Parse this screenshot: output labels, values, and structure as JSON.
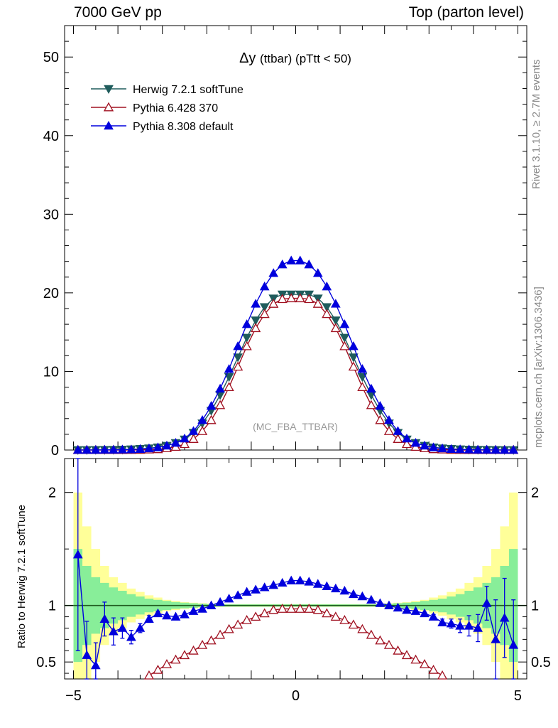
{
  "header": {
    "left": "7000 GeV pp",
    "right": "Top (parton level)"
  },
  "side": {
    "rivet": "Rivet 3.1.10, ≥ 2.7M events",
    "mcplots": "mcplots.cern.ch [arXiv:1306.3436]"
  },
  "chart_data": [
    {
      "type": "line",
      "panel": "main",
      "title_main": "Δy",
      "title_sub": "(ttbar) (pTtt < 50)",
      "watermark": "(MC_FBA_TTBAR)",
      "xlim": [
        -5,
        5
      ],
      "ylim": [
        0,
        54
      ],
      "yticks": [
        0,
        10,
        20,
        30,
        40,
        50
      ],
      "legend": "top-left",
      "x": [
        -4.9,
        -4.7,
        -4.5,
        -4.3,
        -4.1,
        -3.9,
        -3.7,
        -3.5,
        -3.3,
        -3.1,
        -2.9,
        -2.7,
        -2.5,
        -2.3,
        -2.1,
        -1.9,
        -1.7,
        -1.5,
        -1.3,
        -1.1,
        -0.9,
        -0.7,
        -0.5,
        -0.3,
        -0.1,
        0.1,
        0.3,
        0.5,
        0.7,
        0.9,
        1.1,
        1.3,
        1.5,
        1.7,
        1.9,
        2.1,
        2.3,
        2.5,
        2.7,
        2.9,
        3.1,
        3.3,
        3.5,
        3.7,
        3.9,
        4.1,
        4.3,
        4.5,
        4.7,
        4.9
      ],
      "series": [
        {
          "name": "Herwig 7.2.1 softTune",
          "color": "#1f5c5c",
          "marker": "triangle-down-filled",
          "values": [
            0.01,
            0.01,
            0.02,
            0.03,
            0.04,
            0.06,
            0.1,
            0.15,
            0.22,
            0.35,
            0.55,
            0.9,
            1.35,
            2.2,
            3.4,
            5.0,
            7.0,
            9.3,
            11.8,
            14.3,
            16.5,
            18.2,
            19.3,
            19.8,
            19.8,
            19.8,
            19.8,
            19.3,
            18.2,
            16.5,
            14.3,
            11.8,
            9.3,
            7.0,
            5.0,
            3.4,
            2.2,
            1.35,
            0.9,
            0.55,
            0.35,
            0.22,
            0.15,
            0.1,
            0.06,
            0.04,
            0.03,
            0.02,
            0.01,
            0.01
          ]
        },
        {
          "name": "Pythia 6.428 370",
          "color": "#a01020",
          "marker": "triangle-up-open",
          "values": [
            0.0,
            0.0,
            0.0,
            0.0,
            0.0,
            0.0,
            0.01,
            0.02,
            0.06,
            0.1,
            0.22,
            0.4,
            0.75,
            1.4,
            2.4,
            3.8,
            5.7,
            8.0,
            10.6,
            13.2,
            15.5,
            17.3,
            18.6,
            19.2,
            19.3,
            19.3,
            19.2,
            18.6,
            17.3,
            15.5,
            13.2,
            10.6,
            8.0,
            5.7,
            3.8,
            2.4,
            1.4,
            0.75,
            0.4,
            0.22,
            0.1,
            0.06,
            0.02,
            0.01,
            0.0,
            0.0,
            0.0,
            0.0,
            0.0,
            0.0
          ]
        },
        {
          "name": "Pythia 8.308 default",
          "color": "#0000dd",
          "marker": "triangle-up-filled",
          "values": [
            0.01,
            0.01,
            0.01,
            0.03,
            0.03,
            0.05,
            0.07,
            0.12,
            0.2,
            0.32,
            0.55,
            0.9,
            1.45,
            2.4,
            3.8,
            5.6,
            7.8,
            10.3,
            13.2,
            16.0,
            18.6,
            20.8,
            22.5,
            23.6,
            24.1,
            24.1,
            23.6,
            22.5,
            20.8,
            18.6,
            16.0,
            13.2,
            10.3,
            7.8,
            5.6,
            3.8,
            2.4,
            1.45,
            0.9,
            0.55,
            0.32,
            0.2,
            0.12,
            0.08,
            0.05,
            0.03,
            0.03,
            0.02,
            0.01,
            0.01
          ]
        }
      ]
    },
    {
      "type": "line",
      "panel": "ratio",
      "ylabel": "Ratio to Herwig 7.2.1 softTune",
      "xlim": [
        -5,
        5
      ],
      "ylim": [
        0.35,
        2.3
      ],
      "yticks": [
        0.5,
        1,
        2
      ],
      "ytick_labels": [
        "0.5",
        "1",
        "2"
      ],
      "xticks": [
        -5,
        0,
        5
      ],
      "xtick_labels": [
        "−5",
        "0",
        "5"
      ],
      "x": [
        -4.9,
        -4.7,
        -4.5,
        -4.3,
        -4.1,
        -3.9,
        -3.7,
        -3.5,
        -3.3,
        -3.1,
        -2.9,
        -2.7,
        -2.5,
        -2.3,
        -2.1,
        -1.9,
        -1.7,
        -1.5,
        -1.3,
        -1.1,
        -0.9,
        -0.7,
        -0.5,
        -0.3,
        -0.1,
        0.1,
        0.3,
        0.5,
        0.7,
        0.9,
        1.1,
        1.3,
        1.5,
        1.7,
        1.9,
        2.1,
        2.3,
        2.5,
        2.7,
        2.9,
        3.1,
        3.3,
        3.5,
        3.7,
        3.9,
        4.1,
        4.3,
        4.5,
        4.7,
        4.9
      ],
      "band_inner": [
        0.5,
        0.35,
        0.25,
        0.2,
        0.16,
        0.13,
        0.1,
        0.08,
        0.06,
        0.05,
        0.04,
        0.03,
        0.025,
        0.02,
        0.015,
        0.012,
        0.01,
        0.01,
        0.01,
        0.01,
        0.01,
        0.01,
        0.01,
        0.01,
        0.01,
        0.01,
        0.01,
        0.01,
        0.01,
        0.01,
        0.01,
        0.01,
        0.01,
        0.01,
        0.012,
        0.015,
        0.02,
        0.025,
        0.03,
        0.04,
        0.05,
        0.06,
        0.08,
        0.1,
        0.13,
        0.16,
        0.2,
        0.25,
        0.35,
        0.5
      ],
      "band_outer": [
        1.0,
        0.7,
        0.5,
        0.35,
        0.25,
        0.2,
        0.15,
        0.12,
        0.09,
        0.07,
        0.05,
        0.04,
        0.03,
        0.025,
        0.02,
        0.015,
        0.012,
        0.012,
        0.012,
        0.012,
        0.012,
        0.012,
        0.012,
        0.012,
        0.012,
        0.012,
        0.012,
        0.012,
        0.012,
        0.012,
        0.012,
        0.012,
        0.012,
        0.012,
        0.015,
        0.02,
        0.025,
        0.03,
        0.04,
        0.05,
        0.07,
        0.09,
        0.12,
        0.15,
        0.2,
        0.25,
        0.35,
        0.5,
        0.7,
        1.0
      ],
      "series": [
        {
          "name": "Pythia 6.428 370",
          "color": "#a01020",
          "marker": "triangle-up-open",
          "values": [
            null,
            null,
            null,
            null,
            null,
            null,
            null,
            null,
            0.38,
            0.43,
            0.48,
            0.52,
            0.56,
            0.6,
            0.65,
            0.69,
            0.74,
            0.79,
            0.83,
            0.87,
            0.9,
            0.93,
            0.96,
            0.97,
            0.97,
            0.97,
            0.97,
            0.96,
            0.93,
            0.9,
            0.87,
            0.83,
            0.79,
            0.74,
            0.69,
            0.65,
            0.6,
            0.56,
            0.52,
            0.48,
            0.43,
            0.38,
            null,
            null,
            null,
            null,
            null,
            null,
            null,
            null
          ]
        },
        {
          "name": "Pythia 8.308 default",
          "color": "#0000dd",
          "marker": "triangle-up-filled",
          "values": [
            1.45,
            0.56,
            0.47,
            0.88,
            0.77,
            0.8,
            0.72,
            0.8,
            0.88,
            0.93,
            0.91,
            0.9,
            0.92,
            0.95,
            0.97,
            1.0,
            1.03,
            1.06,
            1.09,
            1.12,
            1.14,
            1.16,
            1.18,
            1.2,
            1.22,
            1.22,
            1.21,
            1.19,
            1.17,
            1.15,
            1.13,
            1.1,
            1.08,
            1.05,
            1.02,
            1.0,
            0.98,
            0.96,
            0.95,
            0.93,
            0.9,
            0.85,
            0.84,
            0.82,
            0.82,
            0.8,
            1.02,
            0.7,
            0.89,
            0.65
          ],
          "err": [
            0.85,
            0.3,
            0.2,
            0.15,
            0.12,
            0.09,
            0.06,
            0.04,
            0.03,
            0.02,
            0.015,
            0.01,
            0.01,
            0.01,
            0.01,
            0.01,
            0.01,
            0.01,
            0.01,
            0.01,
            0.01,
            0.01,
            0.01,
            0.01,
            0.01,
            0.01,
            0.01,
            0.01,
            0.01,
            0.01,
            0.01,
            0.01,
            0.01,
            0.01,
            0.01,
            0.01,
            0.01,
            0.01,
            0.01,
            0.015,
            0.02,
            0.03,
            0.04,
            0.06,
            0.09,
            0.12,
            0.15,
            0.35,
            0.35,
            0.4
          ]
        }
      ]
    }
  ]
}
